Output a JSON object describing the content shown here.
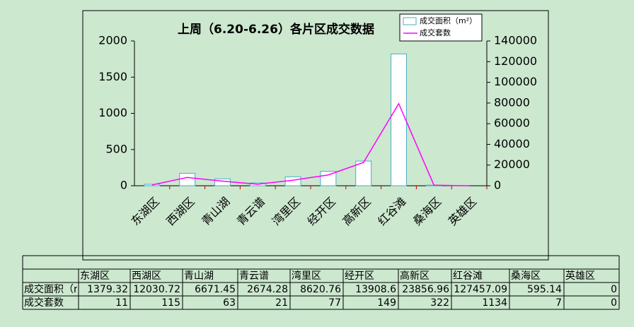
{
  "chart_data": {
    "type": "bar-line",
    "title": "上周（6.20-6.26）各片区成交数据",
    "categories": [
      "东湖区",
      "西湖区",
      "青山湖",
      "青云谱",
      "湾里区",
      "经开区",
      "高新区",
      "红谷滩",
      "桑海区",
      "英雄区"
    ],
    "series": [
      {
        "name": "成交面积（m²）",
        "type": "bar",
        "axis": "y2",
        "color": "#4bacc6",
        "values": [
          1379.32,
          12030.72,
          6671.45,
          2674.28,
          8620.76,
          13908.6,
          23856.96,
          127457.09,
          595.14,
          0
        ]
      },
      {
        "name": "成交套数",
        "type": "line",
        "axis": "y",
        "color": "#ff00ff",
        "values": [
          11,
          115,
          63,
          21,
          77,
          149,
          322,
          1134,
          7,
          0
        ]
      }
    ],
    "ylim": [
      0,
      2000
    ],
    "yticks": [
      0,
      500,
      1000,
      1500,
      2000
    ],
    "y2lim": [
      0,
      140000
    ],
    "y2ticks": [
      0,
      20000,
      40000,
      60000,
      80000,
      100000,
      120000,
      140000
    ],
    "legend": "top-right"
  }
}
